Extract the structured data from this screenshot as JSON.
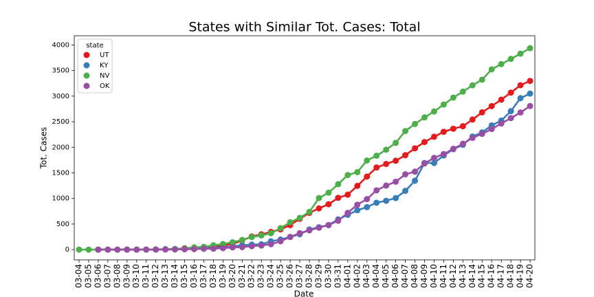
{
  "chart_data": {
    "type": "line",
    "title": "States with Similar Tot. Cases: Total",
    "x_label": "Date",
    "y_label": "Tot. Cases",
    "legend_title": "state",
    "legend_position": "upper left",
    "categories": [
      "03-04",
      "03-05",
      "03-06",
      "03-07",
      "03-08",
      "03-09",
      "03-10",
      "03-11",
      "03-12",
      "03-13",
      "03-14",
      "03-15",
      "03-16",
      "03-17",
      "03-18",
      "03-19",
      "03-20",
      "03-21",
      "03-22",
      "03-23",
      "03-24",
      "03-25",
      "03-26",
      "03-27",
      "03-28",
      "03-29",
      "03-30",
      "03-31",
      "04-01",
      "04-02",
      "04-03",
      "04-04",
      "04-05",
      "04-06",
      "04-07",
      "04-08",
      "04-09",
      "04-10",
      "04-11",
      "04-12",
      "04-13",
      "04-14",
      "04-15",
      "04-16",
      "04-17",
      "04-18",
      "04-19",
      "04-20"
    ],
    "series": [
      {
        "name": "UT",
        "color": "#e41a1c",
        "values": [
          null,
          null,
          0,
          0,
          0,
          0,
          0,
          1,
          2,
          5,
          10,
          28,
          39,
          51,
          63,
          78,
          112,
          181,
          257,
          298,
          346,
          396,
          480,
          602,
          719,
          806,
          887,
          1012,
          1074,
          1246,
          1428,
          1605,
          1675,
          1738,
          1846,
          1980,
          2103,
          2206,
          2303,
          2363,
          2412,
          2542,
          2683,
          2805,
          2931,
          3069,
          3213,
          3297
        ]
      },
      {
        "name": "KY",
        "color": "#377eb8",
        "values": [
          null,
          null,
          0,
          0,
          0,
          0,
          0,
          1,
          3,
          10,
          14,
          20,
          21,
          26,
          35,
          47,
          63,
          87,
          99,
          104,
          163,
          198,
          248,
          302,
          394,
          439,
          480,
          591,
          680,
          770,
          831,
          917,
          955,
          1008,
          1149,
          1346,
          1693,
          1693,
          1840,
          1963,
          2048,
          2210,
          2291,
          2429,
          2522,
          2707,
          2960,
          3050
        ]
      },
      {
        "name": "NV",
        "color": "#4daf4a",
        "values": [
          0,
          0,
          0,
          0,
          0,
          1,
          1,
          2,
          5,
          7,
          11,
          21,
          45,
          55,
          85,
          109,
          145,
          190,
          245,
          278,
          321,
          420,
          535,
          621,
          738,
          1008,
          1113,
          1279,
          1458,
          1514,
          1742,
          1836,
          1953,
          2087,
          2318,
          2456,
          2584,
          2700,
          2836,
          2971,
          3088,
          3211,
          3321,
          3524,
          3626,
          3728,
          3830,
          3937
        ]
      },
      {
        "name": "OK",
        "color": "#984ea3",
        "values": [
          null,
          null,
          0,
          0,
          0,
          1,
          1,
          2,
          2,
          3,
          4,
          7,
          10,
          17,
          19,
          29,
          44,
          49,
          67,
          81,
          106,
          164,
          248,
          322,
          377,
          429,
          481,
          565,
          719,
          879,
          988,
          1159,
          1252,
          1327,
          1472,
          1524,
          1684,
          1794,
          1868,
          1970,
          2069,
          2184,
          2263,
          2357,
          2465,
          2570,
          2680,
          2807
        ]
      }
    ],
    "ylim": [
      -200,
      4180
    ],
    "yticks": [
      0,
      500,
      1000,
      1500,
      2000,
      2500,
      3000,
      3500,
      4000
    ],
    "grid": false
  }
}
